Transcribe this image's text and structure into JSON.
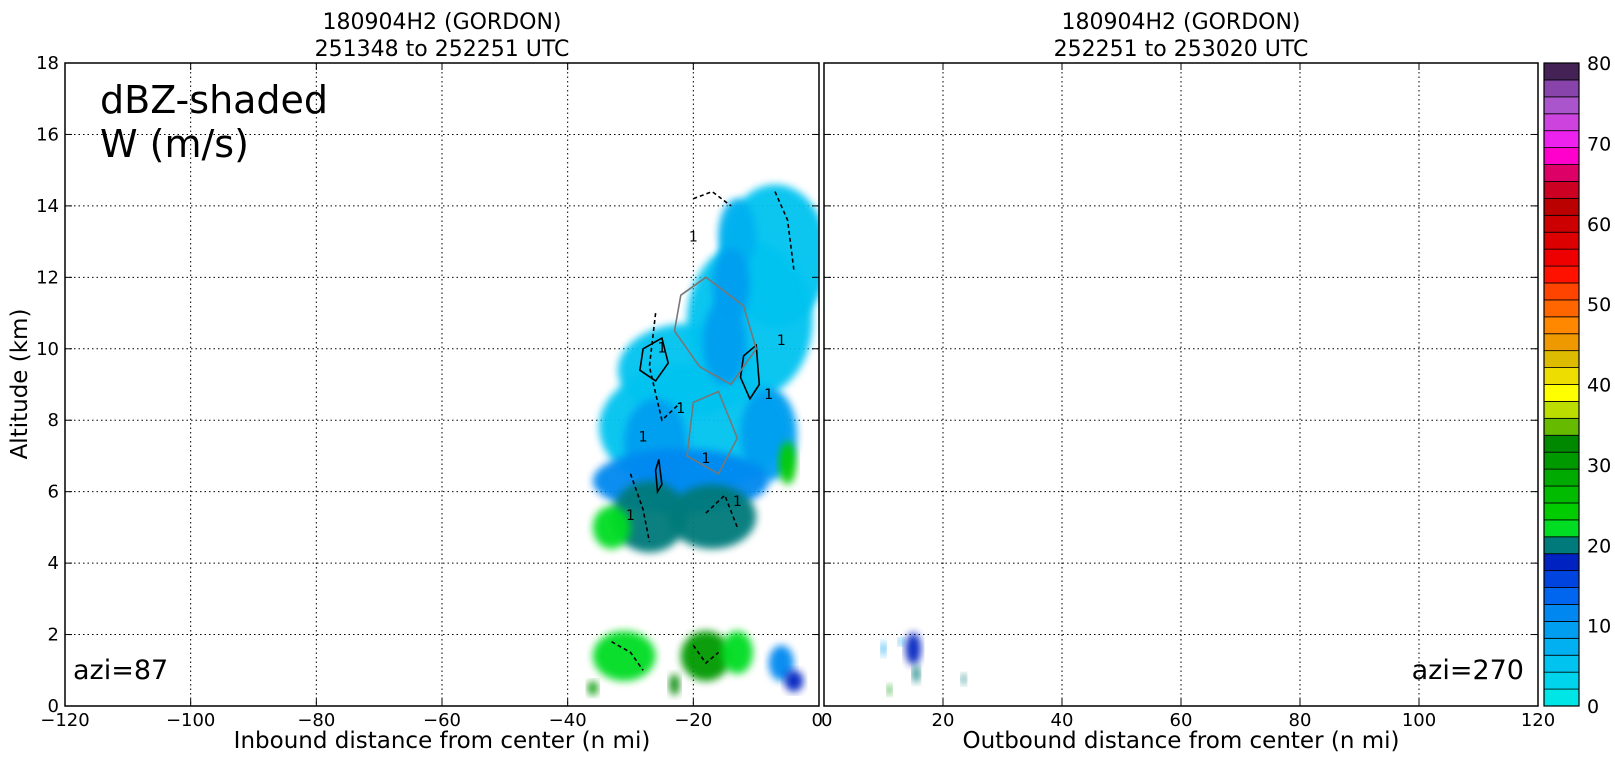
{
  "chart_data": [
    {
      "type": "heatmap",
      "panel": "left",
      "title_line1": "180904H2 (GORDON)",
      "title_line2": "251348 to 252251 UTC",
      "xlabel": "Inbound distance from center (n mi)",
      "ylabel": "Altitude (km)",
      "xlim": [
        -120,
        0
      ],
      "ylim": [
        0,
        18
      ],
      "xticks": [
        -120,
        -100,
        -80,
        -60,
        -40,
        -20,
        0
      ],
      "xtick_labels": [
        "−120",
        "−100",
        "−80",
        "−60",
        "−40",
        "−20",
        "0"
      ],
      "yticks": [
        0,
        2,
        4,
        6,
        8,
        10,
        12,
        14,
        16,
        18
      ],
      "ytick_labels": [
        "0",
        "2",
        "4",
        "6",
        "8",
        "10",
        "12",
        "14",
        "16",
        "18"
      ],
      "grid": true,
      "annotation_line1": "dBZ-shaded",
      "annotation_line2": "W (m/s)",
      "azimuth_label": "azi=87",
      "contour_label": "1",
      "blobs": [
        {
          "x": -7,
          "y": 12.6,
          "rx": 8.5,
          "ry": 2.0,
          "dbz": 5
        },
        {
          "x": -11,
          "y": 10.8,
          "rx": 10,
          "ry": 2.2,
          "dbz": 5
        },
        {
          "x": -21,
          "y": 9.4,
          "rx": 11,
          "ry": 1.3,
          "dbz": 5
        },
        {
          "x": -20,
          "y": 7.8,
          "rx": 15,
          "ry": 1.8,
          "dbz": 7
        },
        {
          "x": -13,
          "y": 13.2,
          "rx": 3,
          "ry": 1.0,
          "dbz": 9
        },
        {
          "x": -14,
          "y": 11.8,
          "rx": 3,
          "ry": 1.0,
          "dbz": 12
        },
        {
          "x": -15,
          "y": 10.2,
          "rx": 3.5,
          "ry": 1.2,
          "dbz": 10
        },
        {
          "x": -26,
          "y": 7.4,
          "rx": 5,
          "ry": 1.2,
          "dbz": 11
        },
        {
          "x": -8,
          "y": 7.6,
          "rx": 4.5,
          "ry": 1.3,
          "dbz": 12
        },
        {
          "x": -22,
          "y": 6.3,
          "rx": 14,
          "ry": 0.9,
          "dbz": 14
        },
        {
          "x": -27,
          "y": 5.3,
          "rx": 6,
          "ry": 1.0,
          "dbz": 23
        },
        {
          "x": -17,
          "y": 5.3,
          "rx": 7,
          "ry": 0.9,
          "dbz": 24
        },
        {
          "x": -33,
          "y": 5.0,
          "rx": 3,
          "ry": 0.6,
          "dbz": 26
        },
        {
          "x": -5,
          "y": 6.8,
          "rx": 1.4,
          "ry": 0.6,
          "dbz": 28
        },
        {
          "x": -31,
          "y": 1.4,
          "rx": 5,
          "ry": 0.7,
          "dbz": 27
        },
        {
          "x": -18,
          "y": 1.4,
          "rx": 4,
          "ry": 0.7,
          "dbz": 37
        },
        {
          "x": -13,
          "y": 1.5,
          "rx": 2.5,
          "ry": 0.6,
          "dbz": 25
        },
        {
          "x": -6,
          "y": 1.2,
          "rx": 2,
          "ry": 0.5,
          "dbz": 13
        },
        {
          "x": -4,
          "y": 0.7,
          "rx": 1.5,
          "ry": 0.3,
          "dbz": 22
        },
        {
          "x": -36,
          "y": 0.5,
          "rx": 0.8,
          "ry": 0.2,
          "dbz": 37
        },
        {
          "x": -23,
          "y": 0.6,
          "rx": 0.8,
          "ry": 0.3,
          "dbz": 38
        }
      ]
    },
    {
      "type": "heatmap",
      "panel": "right",
      "title_line1": "180904H2 (GORDON)",
      "title_line2": "252251 to 253020 UTC",
      "xlabel": "Outbound distance from center (n mi)",
      "xlim": [
        0,
        120
      ],
      "ylim": [
        0,
        18
      ],
      "xticks": [
        0,
        20,
        40,
        60,
        80,
        100,
        120
      ],
      "xtick_labels": [
        "0",
        "20",
        "40",
        "60",
        "80",
        "100",
        "120"
      ],
      "grid": true,
      "azimuth_label": "azi=270",
      "blobs": [
        {
          "x": 15,
          "y": 1.6,
          "rx": 1.3,
          "ry": 0.45,
          "dbz": 22
        },
        {
          "x": 15.5,
          "y": 0.9,
          "rx": 0.6,
          "ry": 0.25,
          "dbz": 24
        },
        {
          "x": 10,
          "y": 1.6,
          "rx": 0.4,
          "ry": 0.2,
          "dbz": 10
        },
        {
          "x": 13,
          "y": 1.8,
          "rx": 0.5,
          "ry": 0.1,
          "dbz": 12
        },
        {
          "x": 23.5,
          "y": 0.75,
          "rx": 0.4,
          "ry": 0.15,
          "dbz": 24
        },
        {
          "x": 11,
          "y": 0.45,
          "rx": 0.4,
          "ry": 0.15,
          "dbz": 37
        }
      ]
    }
  ],
  "colorbar": {
    "min": 0,
    "max": 80,
    "step": 2.5,
    "tick_labels": [
      "0",
      "10",
      "20",
      "30",
      "40",
      "50",
      "60",
      "70",
      "80"
    ],
    "colors": [
      "#00e5e5",
      "#00d4ec",
      "#00c3f0",
      "#00b0f0",
      "#009ef0",
      "#0088f0",
      "#0066f0",
      "#0044e0",
      "#0022c0",
      "#007a7a",
      "#00dd22",
      "#00cc00",
      "#00bb00",
      "#00aa00",
      "#009900",
      "#008800",
      "#66bb00",
      "#bbdd00",
      "#ffff00",
      "#eedd00",
      "#ddbb00",
      "#ee9900",
      "#ff8800",
      "#ff6600",
      "#ff4400",
      "#ff1100",
      "#ee0000",
      "#dd0000",
      "#cc0000",
      "#bb0000",
      "#cc0022",
      "#dd0066",
      "#ff00cc",
      "#ee22ee",
      "#cc44dd",
      "#aa55cc",
      "#8844aa",
      "#442255"
    ]
  }
}
